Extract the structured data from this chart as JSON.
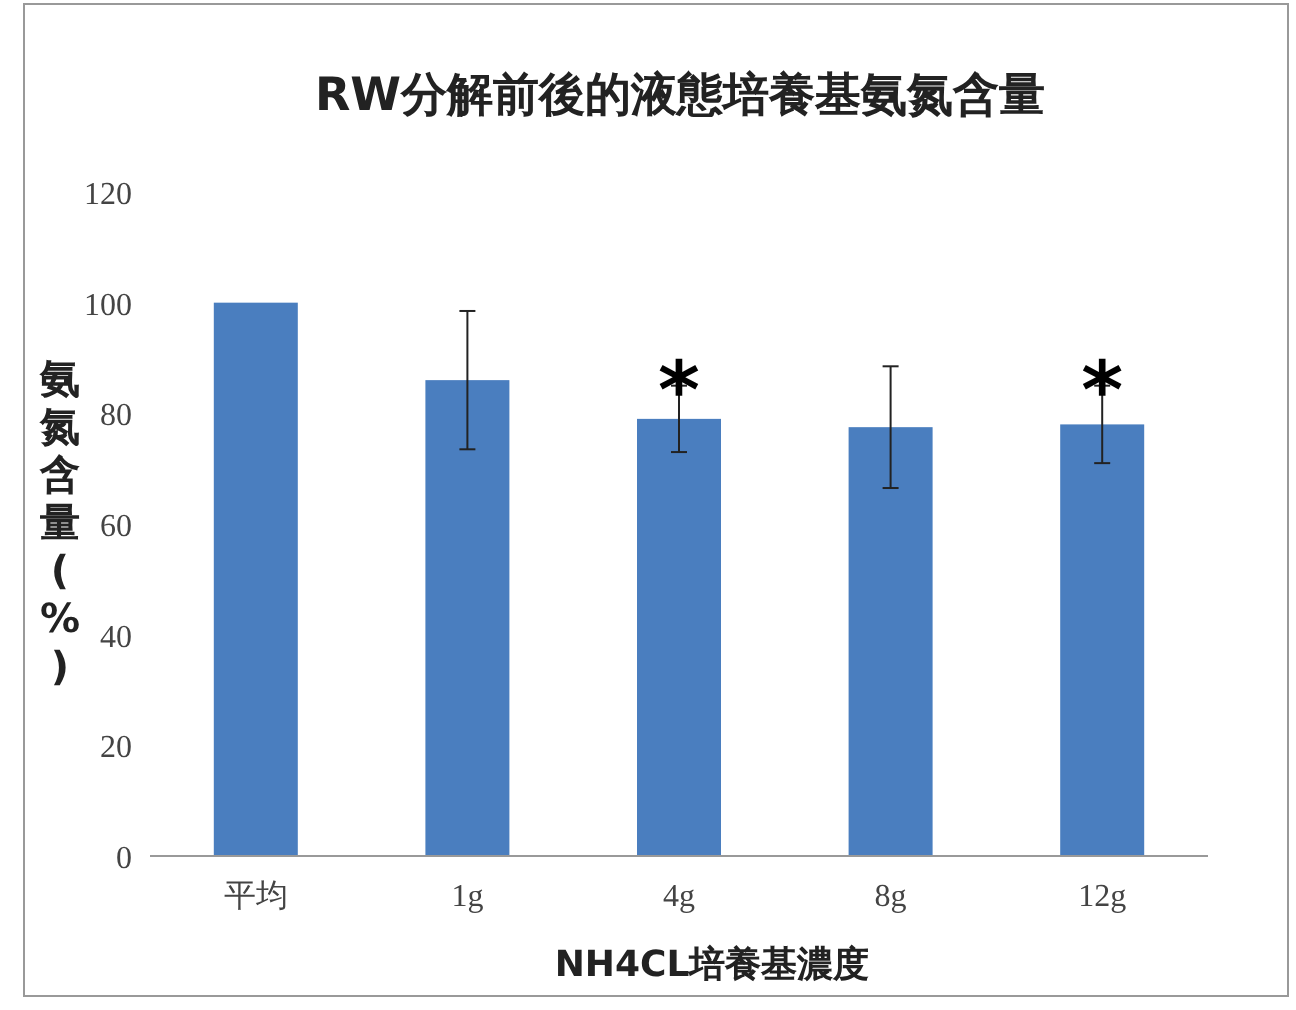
{
  "chart_data": {
    "type": "bar",
    "title": "RW分解前後的液態培養基氨氮含量",
    "xlabel": "NH4CL培養基濃度",
    "ylabel": "氨氮含量(%)",
    "categories": [
      "平均",
      "1g",
      "4g",
      "8g",
      "12g"
    ],
    "values": [
      100,
      86,
      79,
      77.5,
      78
    ],
    "errors": [
      null,
      12.5,
      6,
      11,
      7
    ],
    "color": "#4a7ebf",
    "ylim": [
      0,
      120
    ],
    "yticks": [
      0,
      20,
      40,
      60,
      80,
      100,
      120
    ],
    "annotations": [
      {
        "text": "*",
        "x": "4g",
        "y": 85
      },
      {
        "text": "*",
        "x": "12g",
        "y": 85
      }
    ]
  }
}
